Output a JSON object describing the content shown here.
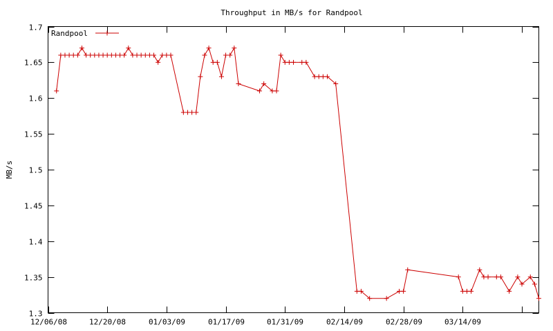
{
  "chart_data": {
    "type": "line",
    "title": "Throughput in MB/s for Randpool",
    "xlabel": "",
    "ylabel": "MB/s",
    "ylim": [
      1.3,
      1.7
    ],
    "xlim": [
      "2008-12-06",
      "2009-04-01"
    ],
    "yticks": [
      "1.3",
      "1.35",
      "1.4",
      "1.45",
      "1.5",
      "1.55",
      "1.6",
      "1.65",
      "1.7"
    ],
    "xticks": [
      {
        "date": "2008-12-06",
        "label": "12/06/08"
      },
      {
        "date": "2008-12-20",
        "label": "12/20/08"
      },
      {
        "date": "2009-01-03",
        "label": "01/03/09"
      },
      {
        "date": "2009-01-17",
        "label": "01/17/09"
      },
      {
        "date": "2009-01-31",
        "label": "01/31/09"
      },
      {
        "date": "2009-02-14",
        "label": "02/14/09"
      },
      {
        "date": "2009-02-28",
        "label": "02/28/09"
      },
      {
        "date": "2009-03-14",
        "label": "03/14/09"
      }
    ],
    "grid": false,
    "legend_position": "top-left",
    "series": [
      {
        "name": "Randpool",
        "color": "#cc0000",
        "x": [
          "2008-12-08",
          "2008-12-09",
          "2008-12-10",
          "2008-12-11",
          "2008-12-12",
          "2008-12-13",
          "2008-12-14",
          "2008-12-15",
          "2008-12-16",
          "2008-12-17",
          "2008-12-18",
          "2008-12-19",
          "2008-12-20",
          "2008-12-21",
          "2008-12-22",
          "2008-12-23",
          "2008-12-24",
          "2008-12-25",
          "2008-12-26",
          "2008-12-27",
          "2008-12-28",
          "2008-12-29",
          "2008-12-30",
          "2008-12-31",
          "2009-01-01",
          "2009-01-02",
          "2009-01-03",
          "2009-01-04",
          "2009-01-07",
          "2009-01-08",
          "2009-01-09",
          "2009-01-10",
          "2009-01-11",
          "2009-01-12",
          "2009-01-13",
          "2009-01-14",
          "2009-01-15",
          "2009-01-16",
          "2009-01-17",
          "2009-01-18",
          "2009-01-19",
          "2009-01-20",
          "2009-01-25",
          "2009-01-26",
          "2009-01-28",
          "2009-01-29",
          "2009-01-30",
          "2009-01-31",
          "2009-02-01",
          "2009-02-02",
          "2009-02-04",
          "2009-02-05",
          "2009-02-07",
          "2009-02-08",
          "2009-02-09",
          "2009-02-10",
          "2009-02-12",
          "2009-02-17",
          "2009-02-18",
          "2009-02-20",
          "2009-02-24",
          "2009-02-27",
          "2009-02-28",
          "2009-03-01",
          "2009-03-13",
          "2009-03-14",
          "2009-03-15",
          "2009-03-16",
          "2009-03-18",
          "2009-03-19",
          "2009-03-20",
          "2009-03-22",
          "2009-03-23",
          "2009-03-25",
          "2009-03-27",
          "2009-03-28",
          "2009-03-30",
          "2009-03-31",
          "2009-04-01"
        ],
        "y": [
          1.61,
          1.66,
          1.66,
          1.66,
          1.66,
          1.66,
          1.67,
          1.66,
          1.66,
          1.66,
          1.66,
          1.66,
          1.66,
          1.66,
          1.66,
          1.66,
          1.66,
          1.67,
          1.66,
          1.66,
          1.66,
          1.66,
          1.66,
          1.66,
          1.65,
          1.66,
          1.66,
          1.66,
          1.58,
          1.58,
          1.58,
          1.58,
          1.63,
          1.66,
          1.67,
          1.65,
          1.65,
          1.63,
          1.66,
          1.66,
          1.67,
          1.62,
          1.61,
          1.62,
          1.61,
          1.61,
          1.66,
          1.65,
          1.65,
          1.65,
          1.65,
          1.65,
          1.63,
          1.63,
          1.63,
          1.63,
          1.62,
          1.33,
          1.33,
          1.32,
          1.32,
          1.33,
          1.33,
          1.36,
          1.35,
          1.33,
          1.33,
          1.33,
          1.36,
          1.35,
          1.35,
          1.35,
          1.35,
          1.33,
          1.35,
          1.34,
          1.35,
          1.34,
          1.32
        ]
      }
    ]
  }
}
